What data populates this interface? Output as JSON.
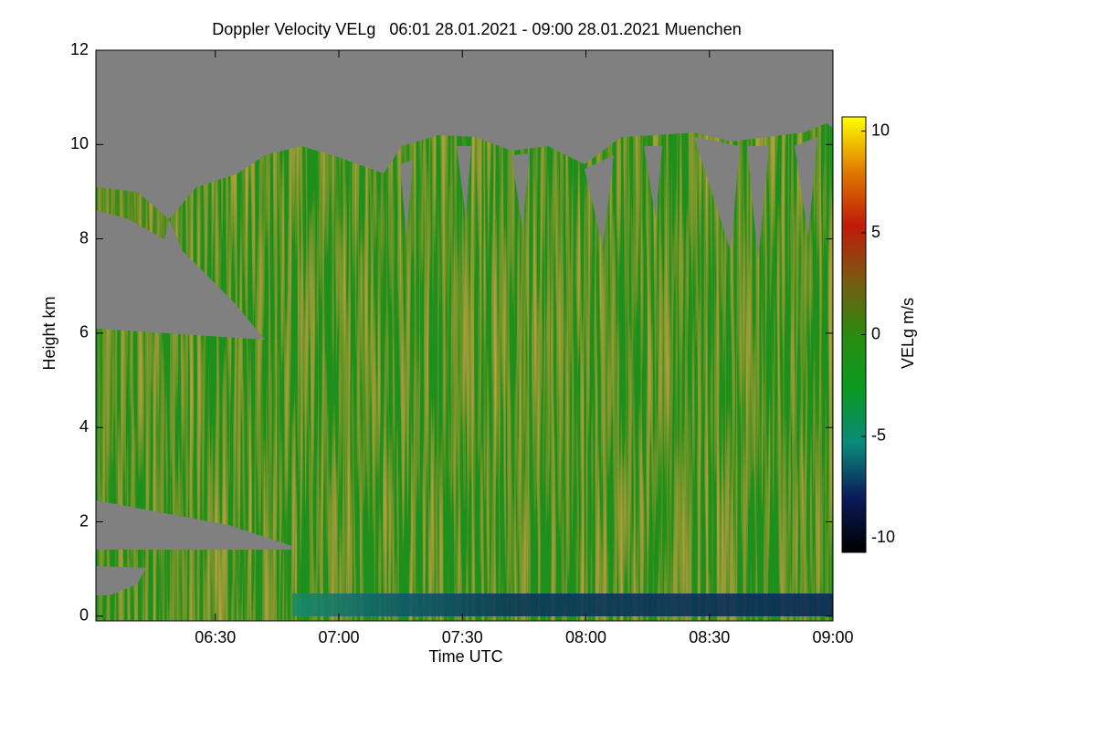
{
  "chart_data": {
    "type": "heatmap",
    "title": "Doppler Velocity VELg   06:01 28.01.2021 - 09:00 28.01.2021 Muenchen",
    "x_label": "Time UTC",
    "y_label": "Height km",
    "xlim": [
      "06:01",
      "09:00"
    ],
    "xticks": [
      "06:30",
      "07:00",
      "07:30",
      "08:00",
      "08:30",
      "09:00"
    ],
    "ylim": [
      -0.1,
      12
    ],
    "yticks": [
      0,
      2,
      4,
      6,
      8,
      10,
      12
    ],
    "colorbar": {
      "label": "VELg m/s",
      "lim": [
        -10.7,
        10.7
      ],
      "ticks": [
        -10,
        -5,
        0,
        5,
        10
      ],
      "colormap": [
        "#000000",
        "#0a1a5a",
        "#0a8a7a",
        "#0a9a20",
        "#2a8a10",
        "#7a5a10",
        "#c01a0a",
        "#e07a00",
        "#ffff00"
      ]
    },
    "missing_color": "#808080"
  }
}
